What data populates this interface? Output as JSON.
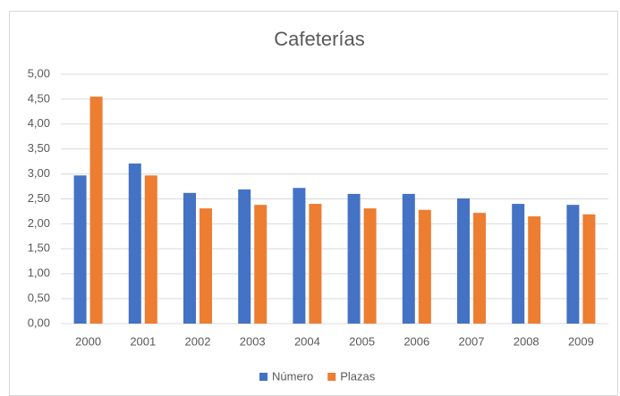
{
  "chart_data": {
    "type": "bar",
    "title": "Cafeterías",
    "categories": [
      "2000",
      "2001",
      "2002",
      "2003",
      "2004",
      "2005",
      "2006",
      "2007",
      "2008",
      "2009"
    ],
    "series": [
      {
        "name": "Número",
        "color": "#4472c4",
        "values": [
          2.97,
          3.21,
          2.62,
          2.69,
          2.72,
          2.6,
          2.6,
          2.51,
          2.4,
          2.38
        ]
      },
      {
        "name": "Plazas",
        "color": "#ed7d31",
        "values": [
          4.55,
          2.97,
          2.31,
          2.38,
          2.4,
          2.31,
          2.28,
          2.22,
          2.15,
          2.19
        ]
      }
    ],
    "ylim": [
      0,
      5
    ],
    "yticks": [
      {
        "value": 0,
        "label": "0,00"
      },
      {
        "value": 0.5,
        "label": "0,50"
      },
      {
        "value": 1,
        "label": "1,00"
      },
      {
        "value": 1.5,
        "label": "1,50"
      },
      {
        "value": 2,
        "label": "2,00"
      },
      {
        "value": 2.5,
        "label": "2,50"
      },
      {
        "value": 3,
        "label": "3,00"
      },
      {
        "value": 3.5,
        "label": "3,50"
      },
      {
        "value": 4,
        "label": "4,00"
      },
      {
        "value": 4.5,
        "label": "4,50"
      },
      {
        "value": 5,
        "label": "5,00"
      }
    ],
    "grid": true,
    "legend": "bottom"
  }
}
